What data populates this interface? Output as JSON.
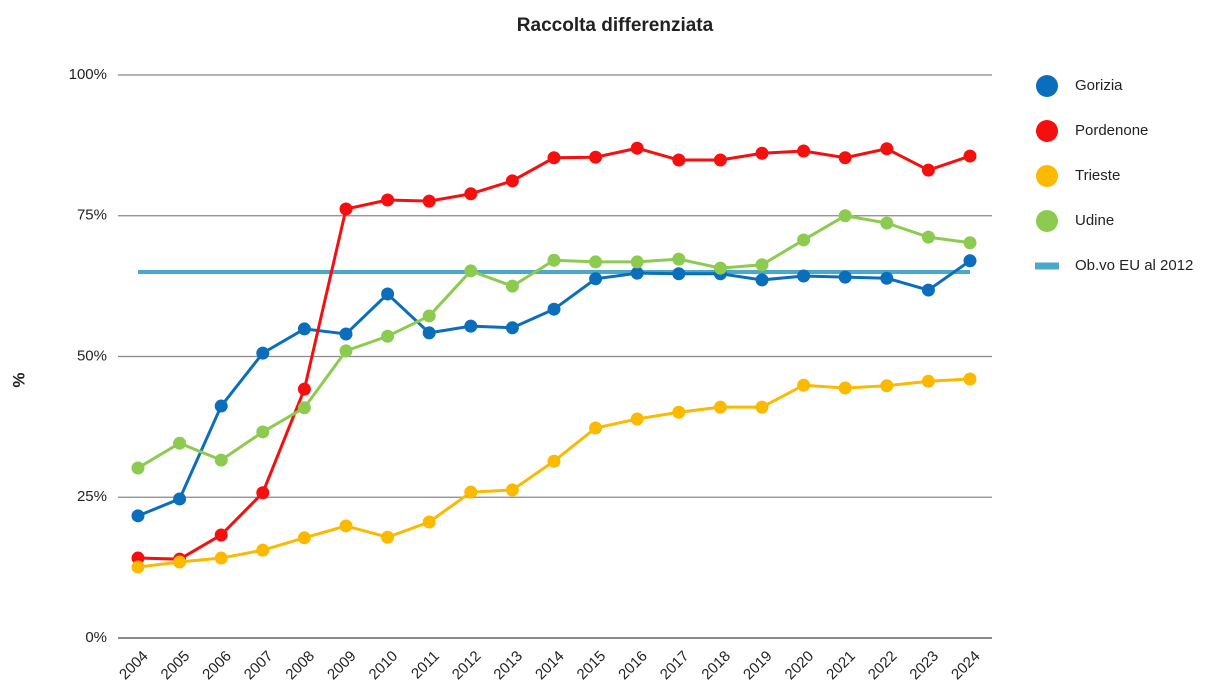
{
  "chart_data": {
    "type": "line",
    "title": "Raccolta differenziata",
    "y_label": "%",
    "categories": [
      "2004",
      "2005",
      "2006",
      "2007",
      "2008",
      "2009",
      "2010",
      "2011",
      "2012",
      "2013",
      "2014",
      "2015",
      "2016",
      "2017",
      "2018",
      "2019",
      "2020",
      "2021",
      "2022",
      "2023",
      "2024"
    ],
    "series": [
      {
        "name": "Gorizia",
        "color": "#0a6ebd",
        "markers": true,
        "values": [
          21.7,
          24.7,
          41.2,
          50.6,
          54.9,
          54.0,
          61.1,
          54.2,
          55.4,
          55.1,
          58.4,
          63.8,
          64.8,
          64.7,
          64.7,
          63.6,
          64.3,
          64.1,
          63.9,
          61.8,
          67.0
        ]
      },
      {
        "name": "Pordenone",
        "color": "#f50f0f",
        "markers": true,
        "values": [
          14.2,
          14.0,
          18.3,
          25.8,
          44.2,
          76.2,
          77.8,
          77.6,
          78.9,
          81.2,
          85.3,
          85.4,
          87.0,
          84.9,
          84.9,
          86.1,
          86.5,
          85.3,
          86.9,
          83.1,
          85.6
        ]
      },
      {
        "name": "Trieste",
        "color": "#fbb900",
        "markers": true,
        "values": [
          12.6,
          13.5,
          14.2,
          15.6,
          17.8,
          19.9,
          17.9,
          20.6,
          25.9,
          26.3,
          31.4,
          37.3,
          38.9,
          40.1,
          41.0,
          41.0,
          44.9,
          44.4,
          44.8,
          45.6,
          46.0
        ]
      },
      {
        "name": "Udine",
        "color": "#8ccb50",
        "markers": true,
        "values": [
          30.2,
          34.6,
          31.6,
          36.6,
          40.9,
          51.0,
          53.6,
          57.2,
          65.2,
          62.5,
          67.1,
          66.8,
          66.8,
          67.3,
          65.7,
          66.3,
          70.7,
          75.0,
          73.7,
          71.2,
          70.2
        ]
      },
      {
        "name": "Ob.vo EU al 2012",
        "color": "#4aa9c9",
        "markers": false,
        "values": [
          65,
          65,
          65,
          65,
          65,
          65,
          65,
          65,
          65,
          65,
          65,
          65,
          65,
          65,
          65,
          65,
          65,
          65,
          65,
          65,
          65
        ]
      }
    ],
    "ylim": [
      0,
      100
    ],
    "yticks": [
      {
        "value": 0,
        "label": "0%"
      },
      {
        "value": 25,
        "label": "25%"
      },
      {
        "value": 50,
        "label": "50%"
      },
      {
        "value": 75,
        "label": "75%"
      },
      {
        "value": 100,
        "label": "100%"
      }
    ],
    "grid": true,
    "legend": "right"
  }
}
